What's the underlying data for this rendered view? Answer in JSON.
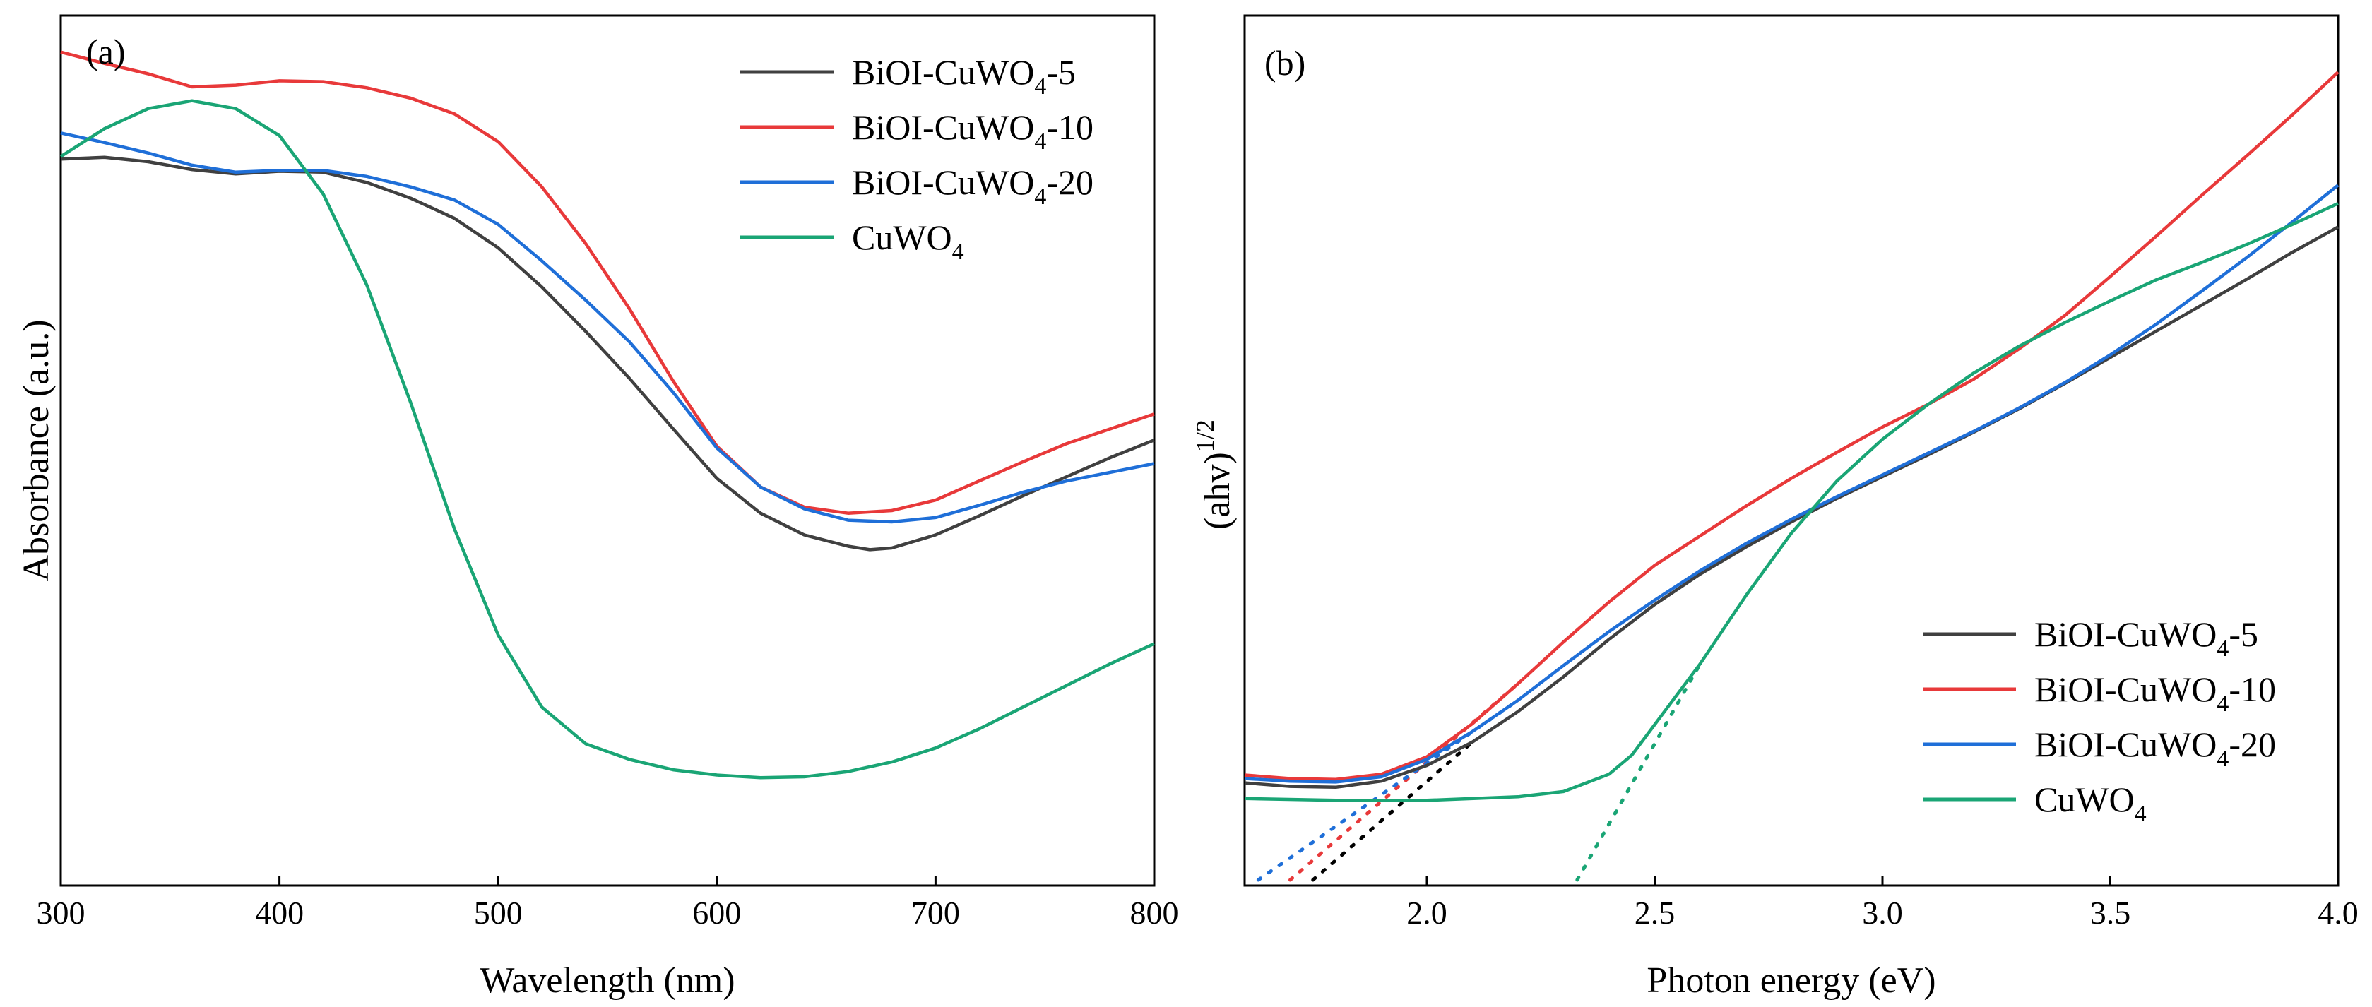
{
  "chart_data": [
    {
      "type": "line",
      "panel_label": "(a)",
      "xlabel": "Wavelength (nm)",
      "ylabel": "Absorbance (a.u.)",
      "xlim": [
        300,
        800
      ],
      "ylim": [
        0,
        1
      ],
      "xticks": [
        300,
        400,
        500,
        600,
        700,
        800
      ],
      "xtick_labels": [
        "300",
        "400",
        "500",
        "600",
        "700",
        "800"
      ],
      "yticks_shown": false,
      "legend_position": "top-right",
      "series": [
        {
          "name": "BiOI-CuWO4-5",
          "label_main": "BiOI-CuWO",
          "label_sub": "4",
          "label_suffix": "-5",
          "color": "#404040",
          "x": [
            300,
            320,
            340,
            360,
            380,
            400,
            420,
            440,
            460,
            480,
            500,
            520,
            540,
            560,
            580,
            600,
            620,
            640,
            660,
            670,
            680,
            700,
            720,
            740,
            760,
            780,
            800
          ],
          "y": [
            0.835,
            0.837,
            0.832,
            0.823,
            0.818,
            0.821,
            0.82,
            0.808,
            0.79,
            0.767,
            0.733,
            0.688,
            0.637,
            0.583,
            0.525,
            0.468,
            0.428,
            0.403,
            0.39,
            0.386,
            0.388,
            0.403,
            0.425,
            0.448,
            0.47,
            0.492,
            0.512
          ]
        },
        {
          "name": "BiOI-CuWO4-10",
          "label_main": "BiOI-CuWO",
          "label_sub": "4",
          "label_suffix": "-10",
          "color": "#e8393a",
          "x": [
            300,
            320,
            340,
            360,
            380,
            400,
            420,
            440,
            460,
            480,
            500,
            520,
            540,
            560,
            580,
            600,
            620,
            640,
            660,
            680,
            700,
            720,
            740,
            760,
            780,
            800
          ],
          "y": [
            0.958,
            0.945,
            0.933,
            0.918,
            0.92,
            0.925,
            0.924,
            0.917,
            0.905,
            0.887,
            0.855,
            0.803,
            0.738,
            0.663,
            0.58,
            0.505,
            0.458,
            0.435,
            0.428,
            0.431,
            0.443,
            0.465,
            0.487,
            0.508,
            0.525,
            0.542
          ]
        },
        {
          "name": "BiOI-CuWO4-20",
          "label_main": "BiOI-CuWO",
          "label_sub": "4",
          "label_suffix": "-20",
          "color": "#1f6fd8",
          "x": [
            300,
            320,
            340,
            360,
            380,
            400,
            420,
            440,
            460,
            480,
            500,
            520,
            540,
            560,
            580,
            600,
            620,
            640,
            660,
            680,
            700,
            720,
            740,
            760,
            780,
            800
          ],
          "y": [
            0.865,
            0.854,
            0.842,
            0.828,
            0.82,
            0.822,
            0.822,
            0.815,
            0.803,
            0.788,
            0.76,
            0.718,
            0.673,
            0.625,
            0.567,
            0.503,
            0.458,
            0.433,
            0.42,
            0.418,
            0.423,
            0.437,
            0.452,
            0.465,
            0.475,
            0.485
          ]
        },
        {
          "name": "CuWO4",
          "label_main": "CuWO",
          "label_sub": "4",
          "label_suffix": "",
          "color": "#1aa575",
          "x": [
            300,
            320,
            340,
            360,
            380,
            400,
            420,
            440,
            460,
            480,
            500,
            520,
            540,
            560,
            580,
            600,
            620,
            640,
            660,
            680,
            700,
            720,
            740,
            760,
            780,
            800
          ],
          "y": [
            0.838,
            0.87,
            0.893,
            0.902,
            0.893,
            0.862,
            0.795,
            0.69,
            0.555,
            0.41,
            0.288,
            0.205,
            0.163,
            0.145,
            0.133,
            0.127,
            0.124,
            0.125,
            0.131,
            0.142,
            0.158,
            0.18,
            0.205,
            0.23,
            0.255,
            0.278
          ]
        }
      ]
    },
    {
      "type": "line",
      "panel_label": "(b)",
      "xlabel": "Photon energy (eV)",
      "ylabel_main": "(ahv)",
      "ylabel_sup": "1/2",
      "xlim": [
        1.6,
        4.0
      ],
      "ylim": [
        0,
        1
      ],
      "xticks": [
        2.0,
        2.5,
        3.0,
        3.5,
        4.0
      ],
      "xtick_labels": [
        "2.0",
        "2.5",
        "3.0",
        "3.5",
        "4.0"
      ],
      "yticks_shown": false,
      "legend_position": "bottom-right",
      "series": [
        {
          "name": "BiOI-CuWO4-5",
          "label_main": "BiOI-CuWO",
          "label_sub": "4",
          "label_suffix": "-5",
          "color": "#404040",
          "x": [
            1.6,
            1.7,
            1.8,
            1.9,
            2.0,
            2.1,
            2.2,
            2.3,
            2.4,
            2.5,
            2.6,
            2.7,
            2.8,
            2.9,
            3.0,
            3.1,
            3.2,
            3.3,
            3.4,
            3.5,
            3.6,
            3.7,
            3.8,
            3.9,
            4.0
          ],
          "y": [
            0.118,
            0.114,
            0.113,
            0.12,
            0.138,
            0.165,
            0.2,
            0.24,
            0.283,
            0.323,
            0.358,
            0.389,
            0.418,
            0.445,
            0.47,
            0.495,
            0.521,
            0.548,
            0.577,
            0.607,
            0.637,
            0.667,
            0.697,
            0.728,
            0.757
          ]
        },
        {
          "name": "BiOI-CuWO4-10",
          "label_main": "BiOI-CuWO",
          "label_sub": "4",
          "label_suffix": "-10",
          "color": "#e8393a",
          "x": [
            1.6,
            1.7,
            1.8,
            1.9,
            2.0,
            2.1,
            2.2,
            2.3,
            2.4,
            2.5,
            2.6,
            2.7,
            2.8,
            2.9,
            3.0,
            3.1,
            3.2,
            3.3,
            3.4,
            3.5,
            3.6,
            3.7,
            3.8,
            3.9,
            4.0
          ],
          "y": [
            0.127,
            0.123,
            0.122,
            0.128,
            0.148,
            0.186,
            0.232,
            0.28,
            0.326,
            0.368,
            0.402,
            0.436,
            0.468,
            0.498,
            0.527,
            0.553,
            0.582,
            0.617,
            0.655,
            0.7,
            0.746,
            0.793,
            0.839,
            0.886,
            0.935
          ]
        },
        {
          "name": "BiOI-CuWO4-20",
          "label_main": "BiOI-CuWO",
          "label_sub": "4",
          "label_suffix": "-20",
          "color": "#1f6fd8",
          "x": [
            1.6,
            1.7,
            1.8,
            1.9,
            2.0,
            2.1,
            2.2,
            2.3,
            2.4,
            2.5,
            2.6,
            2.7,
            2.8,
            2.9,
            3.0,
            3.1,
            3.2,
            3.3,
            3.4,
            3.5,
            3.6,
            3.7,
            3.8,
            3.9,
            4.0
          ],
          "y": [
            0.123,
            0.12,
            0.119,
            0.125,
            0.145,
            0.177,
            0.213,
            0.253,
            0.292,
            0.328,
            0.362,
            0.393,
            0.421,
            0.447,
            0.472,
            0.497,
            0.522,
            0.549,
            0.578,
            0.61,
            0.645,
            0.683,
            0.722,
            0.763,
            0.805
          ]
        },
        {
          "name": "CuWO4",
          "label_main": "CuWO",
          "label_sub": "4",
          "label_suffix": "",
          "color": "#1aa575",
          "x": [
            1.6,
            1.8,
            2.0,
            2.2,
            2.3,
            2.4,
            2.45,
            2.5,
            2.6,
            2.7,
            2.8,
            2.9,
            3.0,
            3.1,
            3.2,
            3.3,
            3.4,
            3.5,
            3.6,
            3.7,
            3.8,
            3.9,
            4.0
          ],
          "y": [
            0.1,
            0.098,
            0.098,
            0.102,
            0.108,
            0.128,
            0.15,
            0.185,
            0.255,
            0.333,
            0.405,
            0.465,
            0.513,
            0.553,
            0.589,
            0.62,
            0.647,
            0.672,
            0.696,
            0.716,
            0.737,
            0.76,
            0.784
          ]
        }
      ],
      "extrapolations": [
        {
          "series": "BiOI-CuWO4-5",
          "color": "#000000",
          "x": [
            1.75,
            2.1
          ],
          "y": [
            0.0,
            0.165
          ]
        },
        {
          "series": "BiOI-CuWO4-10",
          "color": "#e8393a",
          "x": [
            1.7,
            2.2
          ],
          "y": [
            0.0,
            0.232
          ]
        },
        {
          "series": "BiOI-CuWO4-20",
          "color": "#1f6fd8",
          "x": [
            1.63,
            2.2
          ],
          "y": [
            0.0,
            0.213
          ]
        },
        {
          "series": "CuWO4",
          "color": "#1aa575",
          "x": [
            2.33,
            2.6
          ],
          "y": [
            0.0,
            0.255
          ]
        }
      ]
    }
  ]
}
